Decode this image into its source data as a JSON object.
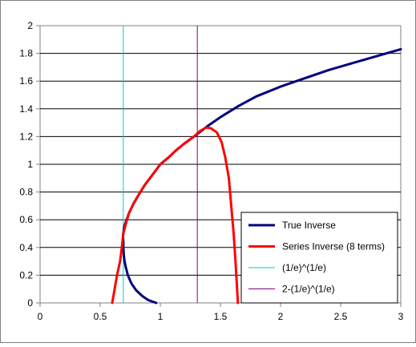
{
  "chart_data": {
    "type": "line",
    "xlim": [
      0,
      3
    ],
    "ylim": [
      0,
      2
    ],
    "x_ticks": [
      "0",
      "0.5",
      "1",
      "1.5",
      "2",
      "2.5",
      "3"
    ],
    "y_ticks": [
      "0",
      "0.2",
      "0.4",
      "0.6",
      "0.8",
      "1",
      "1.2",
      "1.4",
      "1.6",
      "1.8",
      "2"
    ],
    "grid": "horizontal",
    "legend_position": "bottom-right",
    "series": [
      {
        "name": "True Inverse",
        "color": "#000080",
        "points": [
          [
            0.966,
            0.0
          ],
          [
            0.9,
            0.02
          ],
          [
            0.85,
            0.05
          ],
          [
            0.8,
            0.09
          ],
          [
            0.76,
            0.14
          ],
          [
            0.73,
            0.2
          ],
          [
            0.712,
            0.26
          ],
          [
            0.703,
            0.3
          ],
          [
            0.697,
            0.34
          ],
          [
            0.693,
            0.4
          ],
          [
            0.693,
            0.44
          ],
          [
            0.69,
            0.48
          ],
          [
            0.692,
            0.5
          ],
          [
            0.7,
            0.55
          ],
          [
            0.72,
            0.6
          ],
          [
            0.74,
            0.65
          ],
          [
            0.78,
            0.72
          ],
          [
            0.82,
            0.78
          ],
          [
            0.87,
            0.85
          ],
          [
            0.94,
            0.93
          ],
          [
            1.0,
            1.0
          ],
          [
            1.07,
            1.05
          ],
          [
            1.13,
            1.1
          ],
          [
            1.2,
            1.15
          ],
          [
            1.28,
            1.2
          ],
          [
            1.34,
            1.24
          ],
          [
            1.4,
            1.28
          ],
          [
            1.5,
            1.34
          ],
          [
            1.65,
            1.42
          ],
          [
            1.8,
            1.49
          ],
          [
            2.0,
            1.56
          ],
          [
            2.2,
            1.62
          ],
          [
            2.4,
            1.68
          ],
          [
            2.6,
            1.73
          ],
          [
            2.8,
            1.78
          ],
          [
            3.0,
            1.83
          ]
        ]
      },
      {
        "name": "Series Inverse (8 terms)",
        "color": "#ff0000",
        "points": [
          [
            0.6,
            0.0
          ],
          [
            0.62,
            0.1
          ],
          [
            0.64,
            0.2
          ],
          [
            0.665,
            0.3
          ],
          [
            0.68,
            0.4
          ],
          [
            0.692,
            0.5
          ],
          [
            0.71,
            0.56
          ],
          [
            0.74,
            0.65
          ],
          [
            0.78,
            0.72
          ],
          [
            0.82,
            0.78
          ],
          [
            0.87,
            0.85
          ],
          [
            0.94,
            0.93
          ],
          [
            1.0,
            1.0
          ],
          [
            1.07,
            1.05
          ],
          [
            1.13,
            1.1
          ],
          [
            1.2,
            1.15
          ],
          [
            1.28,
            1.2
          ],
          [
            1.33,
            1.24
          ],
          [
            1.38,
            1.265
          ],
          [
            1.42,
            1.26
          ],
          [
            1.47,
            1.23
          ],
          [
            1.51,
            1.16
          ],
          [
            1.54,
            1.05
          ],
          [
            1.57,
            0.9
          ],
          [
            1.59,
            0.7
          ],
          [
            1.61,
            0.5
          ],
          [
            1.625,
            0.3
          ],
          [
            1.635,
            0.15
          ],
          [
            1.645,
            0.0
          ]
        ]
      },
      {
        "name": "(1/e)^(1/e)",
        "color": "#00cccc",
        "x": 0.6922
      },
      {
        "name": "2-(1/e)^(1/e)",
        "color": "#800080",
        "x": 1.3078
      }
    ]
  }
}
